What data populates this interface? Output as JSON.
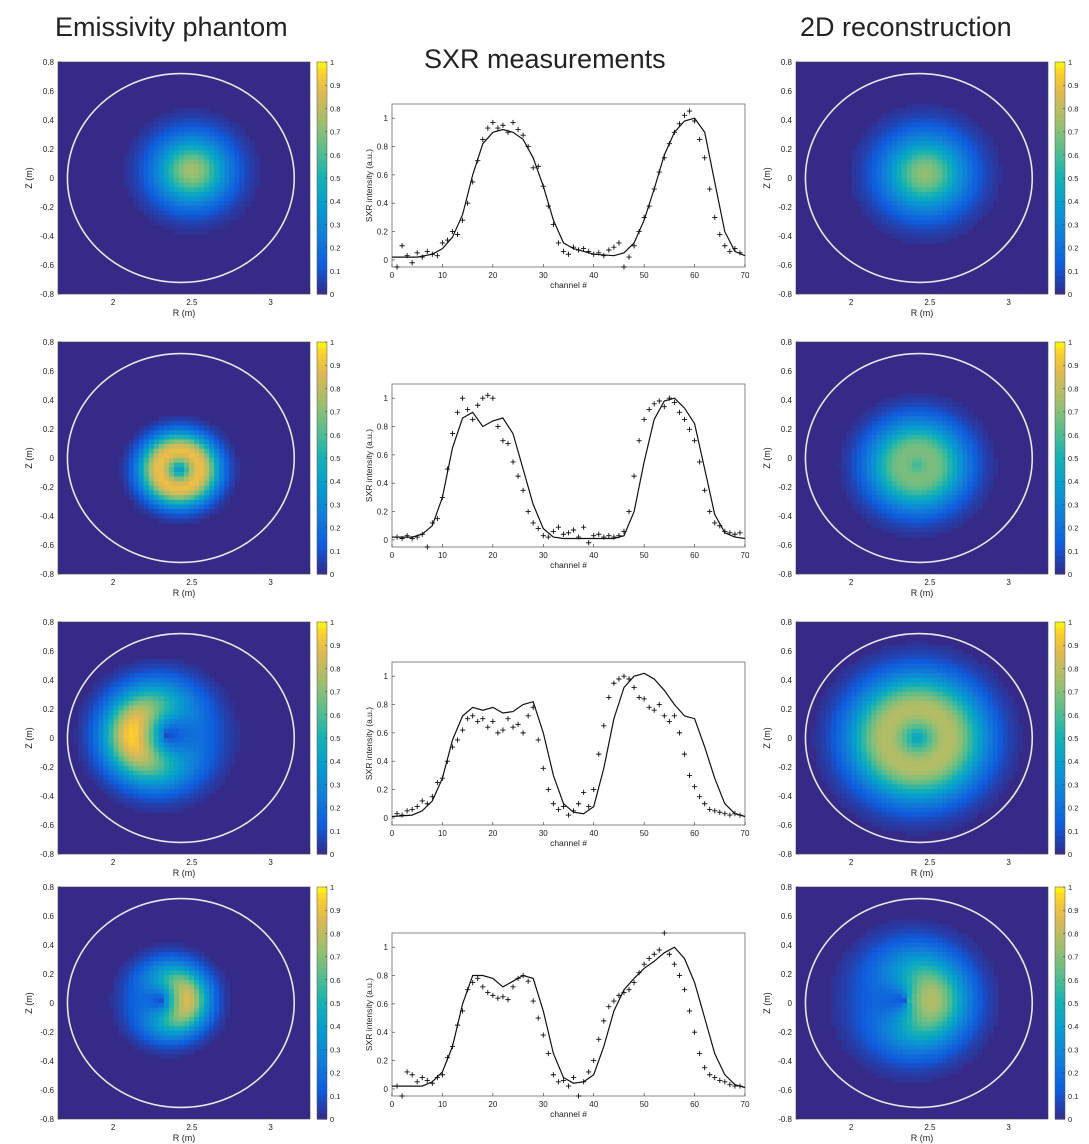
{
  "column_titles": {
    "phantom": "Emissivity phantom",
    "measurements": "SXR measurements",
    "reconstruction": "2D reconstruction"
  },
  "map_axes": {
    "xlabel": "R (m)",
    "ylabel": "Z (m)",
    "xlim": [
      1.65,
      3.25
    ],
    "ylim": [
      -0.8,
      0.8
    ],
    "xticks": [
      2,
      2.5,
      3
    ],
    "yticks": [
      0.8,
      0.6,
      0.4,
      0.2,
      0,
      -0.2,
      -0.4,
      -0.6,
      -0.8
    ],
    "colorbar_ticks": [
      1,
      0.9,
      0.8,
      0.7,
      0.6,
      0.5,
      0.4,
      0.3,
      0.2,
      0.1,
      0
    ],
    "colormap": "parula",
    "boundary_color": "#e8e8e8"
  },
  "profile_axes": {
    "xlabel": "channel #",
    "ylabel": "SXR intensity (a.u.)",
    "xlim": [
      0,
      70
    ],
    "ylim": [
      -0.05,
      1.1
    ],
    "xticks": [
      0,
      10,
      20,
      30,
      40,
      50,
      60,
      70
    ],
    "yticks": [
      0,
      0.2,
      0.4,
      0.6,
      0.8,
      1
    ]
  },
  "chart_data": [
    {
      "type": "heatmap",
      "column": "Emissivity phantom",
      "row": 1,
      "xlabel": "R (m)",
      "ylabel": "Z (m)",
      "xlim": [
        1.65,
        3.25
      ],
      "ylim": [
        -0.8,
        0.8
      ],
      "shape": "peaked",
      "center": [
        2.5,
        0.05
      ],
      "peak": 0.75,
      "width": 0.16
    },
    {
      "type": "scatter",
      "column": "SXR measurements",
      "row": 1,
      "xlabel": "channel #",
      "ylabel": "SXR intensity (a.u.)",
      "xlim": [
        0,
        70
      ],
      "ylim": [
        -0.05,
        1.1
      ],
      "series": [
        {
          "kind": "line",
          "x": [
            0,
            5,
            8,
            10,
            12,
            14,
            16,
            18,
            20,
            22,
            24,
            26,
            28,
            30,
            32,
            34,
            36,
            40,
            44,
            46,
            48,
            50,
            52,
            54,
            56,
            58,
            60,
            62,
            64,
            66,
            68,
            70
          ],
          "values": [
            0.02,
            0.02,
            0.04,
            0.08,
            0.16,
            0.32,
            0.6,
            0.82,
            0.9,
            0.92,
            0.9,
            0.85,
            0.72,
            0.52,
            0.28,
            0.12,
            0.08,
            0.04,
            0.03,
            0.05,
            0.12,
            0.28,
            0.5,
            0.74,
            0.9,
            0.98,
            1.0,
            0.9,
            0.55,
            0.2,
            0.06,
            0.03
          ]
        },
        {
          "kind": "markers",
          "x": [
            1,
            2,
            3,
            4,
            5,
            6,
            7,
            8,
            9,
            10,
            11,
            12,
            13,
            14,
            15,
            16,
            17,
            18,
            19,
            20,
            21,
            22,
            23,
            24,
            25,
            26,
            27,
            28,
            29,
            30,
            31,
            32,
            33,
            34,
            35,
            36,
            37,
            38,
            39,
            40,
            41,
            42,
            43,
            44,
            45,
            46,
            47,
            48,
            49,
            50,
            51,
            52,
            53,
            54,
            55,
            56,
            57,
            58,
            59,
            60,
            61,
            62,
            63,
            64,
            65,
            66,
            67,
            68,
            69
          ],
          "values": [
            -0.05,
            0.1,
            0.03,
            -0.02,
            0.05,
            0.02,
            0.06,
            0.04,
            0.03,
            0.12,
            0.14,
            0.2,
            0.18,
            0.28,
            0.4,
            0.55,
            0.7,
            0.85,
            0.93,
            0.97,
            0.93,
            0.95,
            0.9,
            0.97,
            0.92,
            0.88,
            0.8,
            0.65,
            0.66,
            0.52,
            0.38,
            0.25,
            0.12,
            0.06,
            0.04,
            0.09,
            0.07,
            0.08,
            0.06,
            0.04,
            0.05,
            0.03,
            0.07,
            0.09,
            0.12,
            -0.05,
            0.02,
            0.1,
            0.2,
            0.3,
            0.38,
            0.5,
            0.62,
            0.72,
            0.82,
            0.9,
            0.96,
            1.02,
            1.05,
            0.98,
            0.85,
            0.72,
            0.5,
            0.3,
            0.18,
            0.1,
            0.06,
            0.08,
            0.05
          ]
        }
      ]
    },
    {
      "type": "heatmap",
      "column": "2D reconstruction",
      "row": 1,
      "xlabel": "R (m)",
      "ylabel": "Z (m)",
      "xlim": [
        1.65,
        3.25
      ],
      "ylim": [
        -0.8,
        0.8
      ],
      "shape": "peaked",
      "center": [
        2.47,
        0.03
      ],
      "peak": 0.72,
      "width": 0.18
    },
    {
      "type": "heatmap",
      "column": "Emissivity phantom",
      "row": 2,
      "xlabel": "R (m)",
      "ylabel": "Z (m)",
      "xlim": [
        1.65,
        3.25
      ],
      "ylim": [
        -0.8,
        0.8
      ],
      "shape": "ring",
      "center": [
        2.42,
        -0.08
      ],
      "radius": 0.13,
      "peak": 0.9,
      "width": 0.09
    },
    {
      "type": "scatter",
      "column": "SXR measurements",
      "row": 2,
      "xlabel": "channel #",
      "ylabel": "SXR intensity (a.u.)",
      "xlim": [
        0,
        70
      ],
      "ylim": [
        -0.05,
        1.1
      ],
      "series": [
        {
          "kind": "line",
          "x": [
            0,
            4,
            6,
            8,
            10,
            12,
            14,
            16,
            18,
            20,
            22,
            24,
            26,
            28,
            30,
            32,
            34,
            38,
            44,
            46,
            48,
            50,
            52,
            54,
            56,
            58,
            60,
            62,
            64,
            66,
            68,
            70
          ],
          "values": [
            0.02,
            0.02,
            0.04,
            0.1,
            0.3,
            0.65,
            0.86,
            0.9,
            0.8,
            0.84,
            0.86,
            0.75,
            0.5,
            0.25,
            0.08,
            0.02,
            0.01,
            0.01,
            0.01,
            0.03,
            0.2,
            0.55,
            0.85,
            0.98,
            1.0,
            0.93,
            0.82,
            0.5,
            0.18,
            0.05,
            0.02,
            0.01
          ]
        },
        {
          "kind": "markers",
          "x": [
            1,
            2,
            3,
            4,
            5,
            6,
            7,
            8,
            9,
            10,
            11,
            12,
            13,
            14,
            15,
            16,
            17,
            18,
            19,
            20,
            21,
            22,
            23,
            24,
            25,
            26,
            27,
            28,
            29,
            30,
            31,
            32,
            33,
            34,
            35,
            36,
            37,
            38,
            39,
            40,
            41,
            42,
            43,
            44,
            45,
            46,
            47,
            48,
            49,
            50,
            51,
            52,
            53,
            54,
            55,
            56,
            57,
            58,
            59,
            60,
            61,
            62,
            63,
            64,
            65,
            66,
            67,
            68,
            69
          ],
          "values": [
            0.02,
            0.01,
            0.03,
            0.01,
            0.02,
            0.04,
            -0.05,
            0.12,
            0.15,
            0.3,
            0.5,
            0.75,
            0.9,
            1.0,
            0.92,
            0.85,
            0.95,
            1.0,
            1.02,
            1.0,
            0.8,
            0.7,
            0.68,
            0.55,
            0.45,
            0.35,
            0.2,
            0.12,
            0.08,
            0.03,
            0.02,
            0.06,
            0.09,
            0.04,
            0.05,
            0.07,
            0.02,
            0.09,
            -0.02,
            0.03,
            0.04,
            0.02,
            0.03,
            0.02,
            0.03,
            0.06,
            0.2,
            0.45,
            0.7,
            0.85,
            0.92,
            0.96,
            0.98,
            0.94,
            1.0,
            0.97,
            0.9,
            0.85,
            0.78,
            0.7,
            0.55,
            0.35,
            0.2,
            0.12,
            0.1,
            0.06,
            0.05,
            0.04,
            0.05
          ]
        }
      ]
    },
    {
      "type": "heatmap",
      "column": "2D reconstruction",
      "row": 2,
      "xlabel": "R (m)",
      "ylabel": "Z (m)",
      "xlim": [
        1.65,
        3.25
      ],
      "ylim": [
        -0.8,
        0.8
      ],
      "shape": "ring",
      "center": [
        2.42,
        -0.05
      ],
      "radius": 0.1,
      "peak": 0.68,
      "width": 0.15
    },
    {
      "type": "heatmap",
      "column": "Emissivity phantom",
      "row": 3,
      "xlabel": "R (m)",
      "ylabel": "Z (m)",
      "xlim": [
        1.65,
        3.25
      ],
      "ylim": [
        -0.8,
        0.8
      ],
      "shape": "crescent",
      "center": [
        2.32,
        0.02
      ],
      "radius": 0.2,
      "opening": 0,
      "peak": 0.95,
      "width": 0.13
    },
    {
      "type": "scatter",
      "column": "SXR measurements",
      "row": 3,
      "xlabel": "channel #",
      "ylabel": "SXR intensity (a.u.)",
      "xlim": [
        0,
        70
      ],
      "ylim": [
        -0.05,
        1.1
      ],
      "series": [
        {
          "kind": "line",
          "x": [
            0,
            4,
            6,
            8,
            10,
            12,
            14,
            16,
            18,
            20,
            22,
            24,
            26,
            28,
            30,
            32,
            34,
            36,
            38,
            40,
            42,
            44,
            46,
            48,
            50,
            52,
            54,
            56,
            58,
            60,
            62,
            64,
            66,
            68,
            70
          ],
          "values": [
            0.01,
            0.02,
            0.05,
            0.12,
            0.28,
            0.55,
            0.72,
            0.78,
            0.76,
            0.78,
            0.74,
            0.75,
            0.8,
            0.82,
            0.6,
            0.3,
            0.1,
            0.04,
            0.03,
            0.08,
            0.35,
            0.7,
            0.92,
            1.0,
            1.02,
            0.98,
            0.9,
            0.8,
            0.72,
            0.7,
            0.5,
            0.28,
            0.1,
            0.03,
            0.01
          ]
        },
        {
          "kind": "markers",
          "x": [
            1,
            2,
            3,
            4,
            5,
            6,
            7,
            8,
            9,
            10,
            11,
            12,
            13,
            14,
            15,
            16,
            17,
            18,
            19,
            20,
            21,
            22,
            23,
            24,
            25,
            26,
            27,
            28,
            29,
            30,
            31,
            32,
            33,
            34,
            35,
            36,
            37,
            38,
            39,
            40,
            41,
            42,
            43,
            44,
            45,
            46,
            47,
            48,
            49,
            50,
            51,
            52,
            53,
            54,
            55,
            56,
            57,
            58,
            59,
            60,
            61,
            62,
            63,
            64,
            65,
            66,
            67,
            68,
            69
          ],
          "values": [
            0.03,
            0.02,
            0.05,
            0.06,
            0.08,
            0.12,
            0.1,
            0.15,
            0.25,
            0.28,
            0.4,
            0.5,
            0.55,
            0.62,
            0.7,
            0.72,
            0.68,
            0.7,
            0.64,
            0.68,
            0.6,
            0.62,
            0.7,
            0.64,
            0.66,
            0.6,
            0.72,
            0.78,
            0.55,
            0.35,
            0.2,
            0.1,
            0.06,
            0.08,
            0.02,
            0.05,
            0.1,
            0.18,
            0.08,
            0.2,
            0.45,
            0.65,
            0.85,
            0.95,
            0.98,
            1.0,
            0.98,
            0.92,
            0.85,
            0.84,
            0.78,
            0.76,
            0.8,
            0.72,
            0.68,
            0.72,
            0.6,
            0.45,
            0.3,
            0.22,
            0.15,
            0.1,
            0.06,
            0.05,
            0.04,
            0.03,
            0.02,
            0.03,
            0.02
          ]
        }
      ]
    },
    {
      "type": "heatmap",
      "column": "2D reconstruction",
      "row": 3,
      "xlabel": "R (m)",
      "ylabel": "Z (m)",
      "xlim": [
        1.65,
        3.25
      ],
      "ylim": [
        -0.8,
        0.8
      ],
      "shape": "ring",
      "center": [
        2.42,
        0.0
      ],
      "radius": 0.2,
      "peak": 0.78,
      "width": 0.17
    },
    {
      "type": "heatmap",
      "column": "Emissivity phantom",
      "row": 4,
      "xlabel": "R (m)",
      "ylabel": "Z (m)",
      "xlim": [
        1.65,
        3.25
      ],
      "ylim": [
        -0.8,
        0.8
      ],
      "shape": "crescent",
      "center": [
        2.33,
        0.02
      ],
      "radius": 0.14,
      "opening": 3.1416,
      "peak": 0.85,
      "width": 0.1
    },
    {
      "type": "scatter",
      "column": "SXR measurements",
      "row": 4,
      "xlabel": "channel #",
      "ylabel": "SXR intensity (a.u.)",
      "xlim": [
        0,
        70
      ],
      "ylim": [
        -0.05,
        1.1
      ],
      "series": [
        {
          "kind": "line",
          "x": [
            0,
            6,
            8,
            10,
            12,
            14,
            16,
            18,
            20,
            22,
            24,
            26,
            28,
            30,
            32,
            34,
            36,
            38,
            40,
            42,
            44,
            46,
            48,
            50,
            52,
            54,
            56,
            58,
            60,
            62,
            64,
            66,
            68,
            70
          ],
          "values": [
            0.02,
            0.02,
            0.05,
            0.12,
            0.3,
            0.6,
            0.8,
            0.8,
            0.78,
            0.72,
            0.76,
            0.8,
            0.78,
            0.55,
            0.25,
            0.08,
            0.04,
            0.05,
            0.1,
            0.3,
            0.55,
            0.7,
            0.78,
            0.85,
            0.9,
            0.96,
            1.0,
            0.92,
            0.75,
            0.5,
            0.25,
            0.1,
            0.03,
            0.01
          ]
        },
        {
          "kind": "markers",
          "x": [
            1,
            2,
            3,
            4,
            5,
            6,
            7,
            8,
            9,
            10,
            11,
            12,
            13,
            14,
            15,
            16,
            17,
            18,
            19,
            20,
            21,
            22,
            23,
            24,
            25,
            26,
            27,
            28,
            29,
            30,
            31,
            32,
            33,
            34,
            35,
            36,
            37,
            38,
            39,
            40,
            41,
            42,
            43,
            44,
            45,
            46,
            47,
            48,
            49,
            50,
            51,
            52,
            53,
            54,
            55,
            56,
            57,
            58,
            59,
            60,
            61,
            62,
            63,
            64,
            65,
            66,
            67,
            68,
            69
          ],
          "values": [
            0.02,
            -0.05,
            0.12,
            0.1,
            0.05,
            0.08,
            0.06,
            0.04,
            0.08,
            0.1,
            0.22,
            0.3,
            0.45,
            0.55,
            0.7,
            0.75,
            0.78,
            0.72,
            0.68,
            0.66,
            0.64,
            0.65,
            0.63,
            0.72,
            0.78,
            0.8,
            0.76,
            0.62,
            0.5,
            0.38,
            0.25,
            0.1,
            0.05,
            0.06,
            0.02,
            0.08,
            -0.05,
            0.05,
            0.12,
            0.2,
            0.35,
            0.48,
            0.58,
            0.62,
            0.66,
            0.68,
            0.7,
            0.75,
            0.82,
            0.88,
            0.92,
            0.95,
            0.98,
            1.1,
            0.95,
            0.88,
            0.8,
            0.7,
            0.55,
            0.4,
            0.25,
            0.15,
            0.1,
            0.08,
            0.06,
            0.05,
            0.03,
            0.02,
            0.02
          ]
        }
      ]
    },
    {
      "type": "heatmap",
      "column": "2D reconstruction",
      "row": 4,
      "xlabel": "R (m)",
      "ylabel": "Z (m)",
      "xlim": [
        1.65,
        3.25
      ],
      "ylim": [
        -0.8,
        0.8
      ],
      "shape": "crescent",
      "center": [
        2.35,
        0.02
      ],
      "radius": 0.16,
      "opening": 3.1416,
      "peak": 0.78,
      "width": 0.16
    }
  ]
}
